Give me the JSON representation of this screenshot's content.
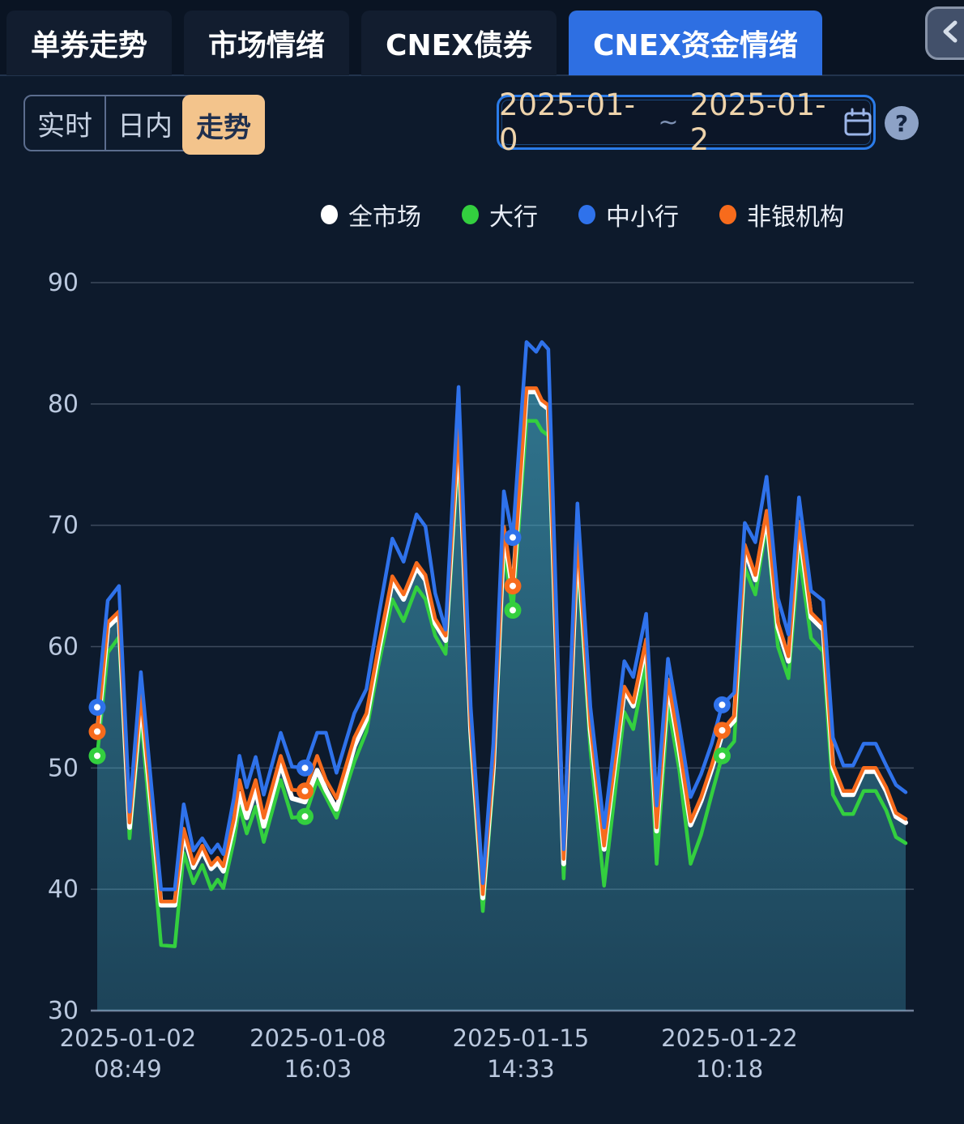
{
  "tabs": {
    "items": [
      {
        "label": "单券走势",
        "active": false
      },
      {
        "label": "市场情绪",
        "active": false
      },
      {
        "label": "CNEX债券",
        "active": false
      },
      {
        "label": "CNEX资金情绪",
        "active": true
      }
    ]
  },
  "controls": {
    "view_modes": [
      {
        "label": "实时",
        "active": false
      },
      {
        "label": "日内",
        "active": false
      },
      {
        "label": "走势",
        "active": true
      }
    ],
    "date_range": {
      "start": "2025-01-0",
      "separator": "~",
      "end": "2025-01-2"
    },
    "help_label": "?"
  },
  "legend": [
    {
      "label": "全市场",
      "color": "#ffffff"
    },
    {
      "label": "大行",
      "color": "#33cf3f"
    },
    {
      "label": "中小行",
      "color": "#2f72eb"
    },
    {
      "label": "非银机构",
      "color": "#f76b1c"
    }
  ],
  "chart_data": {
    "type": "line",
    "ylim": [
      30,
      90
    ],
    "yticks": [
      90,
      80,
      70,
      60,
      50,
      40,
      30
    ],
    "grid": true,
    "legend_position": "top",
    "xticks": [
      {
        "pct": 3.8,
        "date": "2025-01-02",
        "time": "08:49"
      },
      {
        "pct": 27.3,
        "date": "2025-01-08",
        "time": "16:03"
      },
      {
        "pct": 52.4,
        "date": "2025-01-15",
        "time": "14:33"
      },
      {
        "pct": 78.2,
        "date": "2025-01-22",
        "time": "10:18"
      }
    ],
    "x_pct": [
      0,
      1.3,
      2.7,
      4.0,
      5.4,
      6.7,
      7.9,
      9.6,
      10.7,
      11.9,
      13.0,
      14.1,
      14.9,
      15.6,
      16.9,
      17.6,
      18.5,
      19.6,
      20.6,
      22.7,
      24.1,
      25.7,
      27.2,
      28.3,
      29.6,
      31.8,
      33.3,
      34.8,
      36.5,
      37.9,
      39.5,
      40.6,
      41.8,
      43.1,
      44.7,
      46.2,
      47.7,
      49.0,
      50.3,
      51.4,
      53.1,
      54.3,
      55.0,
      55.8,
      57.7,
      59.4,
      61.0,
      62.7,
      65.2,
      66.3,
      67.9,
      69.2,
      70.6,
      72.0,
      73.4,
      74.7,
      76.0,
      77.3,
      78.8,
      80.1,
      81.4,
      82.8,
      84.2,
      85.5,
      86.8,
      88.3,
      89.8,
      91.0,
      92.3,
      93.5,
      94.8,
      96.3,
      97.6,
      98.8,
      100
    ],
    "series": [
      {
        "id": "all-market",
        "name": "全市场",
        "color": "#ffffff",
        "z": 2,
        "fill": true,
        "markers": [],
        "values": [
          52.7,
          61.6,
          62.5,
          45.1,
          55.6,
          46.8,
          38.7,
          38.7,
          44.6,
          41.8,
          43.2,
          41.7,
          42.2,
          41.5,
          45.3,
          47.9,
          45.9,
          48.2,
          45.2,
          50.3,
          47.5,
          47.2,
          49.8,
          48.2,
          46.6,
          51.8,
          54.0,
          59.6,
          65.4,
          63.9,
          66.5,
          65.5,
          61.9,
          60.5,
          77.8,
          53.1,
          39.3,
          50.1,
          69.4,
          64.6,
          81.0,
          81.0,
          80.0,
          79.6,
          42.1,
          68.9,
          53.1,
          43.3,
          56.4,
          55.1,
          60.2,
          44.8,
          56.9,
          51.4,
          45.3,
          47.3,
          49.9,
          52.8,
          53.9,
          68.0,
          65.5,
          70.8,
          61.6,
          58.8,
          69.9,
          62.4,
          61.4,
          50.0,
          47.8,
          47.8,
          49.7,
          49.7,
          48.1,
          46.0,
          45.5
        ]
      },
      {
        "id": "major-banks",
        "name": "大行",
        "color": "#33cf3f",
        "z": 1,
        "fill": false,
        "markers": [
          0,
          21,
          39,
          57
        ],
        "values": [
          51.0,
          59.5,
          60.8,
          44.2,
          54.3,
          44.5,
          35.4,
          35.3,
          43.0,
          40.5,
          42.0,
          40.0,
          40.8,
          40.1,
          44.0,
          46.8,
          44.6,
          46.8,
          43.9,
          49.0,
          45.9,
          46.0,
          49.0,
          47.6,
          45.9,
          50.5,
          53.0,
          58.5,
          63.9,
          62.1,
          64.9,
          63.9,
          60.9,
          59.4,
          76.2,
          52.0,
          38.2,
          49.0,
          67.8,
          63.0,
          78.6,
          78.6,
          77.8,
          77.4,
          40.9,
          67.5,
          51.5,
          40.3,
          54.6,
          53.2,
          58.6,
          42.1,
          55.2,
          49.8,
          42.1,
          44.5,
          47.8,
          51.0,
          52.2,
          66.5,
          64.3,
          70.1,
          60.0,
          57.4,
          67.7,
          60.7,
          59.6,
          47.8,
          46.2,
          46.2,
          48.1,
          48.1,
          46.5,
          44.3,
          43.8
        ]
      },
      {
        "id": "mid-small-banks",
        "name": "中小行",
        "color": "#2f72eb",
        "z": 4,
        "fill": false,
        "markers": [
          0,
          21,
          39,
          57
        ],
        "values": [
          55.0,
          63.8,
          65.0,
          46.4,
          57.9,
          48.5,
          40.0,
          40.0,
          47.0,
          43.2,
          44.2,
          43.0,
          43.7,
          42.9,
          47.5,
          51.0,
          48.4,
          50.9,
          47.8,
          52.9,
          50.1,
          50.0,
          52.9,
          52.9,
          49.6,
          54.5,
          56.5,
          62.5,
          68.9,
          67.0,
          70.9,
          69.9,
          64.4,
          61.4,
          81.4,
          55.0,
          40.5,
          52.0,
          72.8,
          69.0,
          85.1,
          84.3,
          85.1,
          84.5,
          43.3,
          71.8,
          55.0,
          45.1,
          58.8,
          57.5,
          62.7,
          46.9,
          59.0,
          53.5,
          47.6,
          49.5,
          52.0,
          55.2,
          56.2,
          70.2,
          68.6,
          74.0,
          64.0,
          61.0,
          72.3,
          64.6,
          63.8,
          52.5,
          50.2,
          50.2,
          52.0,
          52.0,
          50.2,
          48.6,
          48.0
        ]
      },
      {
        "id": "non-bank",
        "name": "非银机构",
        "color": "#f76b1c",
        "z": 3,
        "fill": false,
        "markers": [
          0,
          21,
          39,
          57
        ],
        "values": [
          53.0,
          62.0,
          62.9,
          45.5,
          56.0,
          47.2,
          39.0,
          39.0,
          45.0,
          42.1,
          43.6,
          42.0,
          42.6,
          41.9,
          45.8,
          49.0,
          46.6,
          49.0,
          45.9,
          51.0,
          48.2,
          48.1,
          51.0,
          49.0,
          47.5,
          52.5,
          54.5,
          60.0,
          65.8,
          64.3,
          66.9,
          65.9,
          62.3,
          60.9,
          78.2,
          53.5,
          39.6,
          50.5,
          69.9,
          65.0,
          81.3,
          81.3,
          80.3,
          79.9,
          42.5,
          69.3,
          53.5,
          43.6,
          56.7,
          55.4,
          60.6,
          45.1,
          57.3,
          51.8,
          45.6,
          47.6,
          50.2,
          53.1,
          54.3,
          68.4,
          65.9,
          71.2,
          62.0,
          59.2,
          70.3,
          62.8,
          61.8,
          50.3,
          48.1,
          48.1,
          50.0,
          50.0,
          48.4,
          46.3,
          45.8
        ]
      }
    ]
  },
  "colors": {
    "background": "#0d1a2c",
    "tab_active": "#2e6fe2",
    "toggle_active": "#f3c48c",
    "date_border": "#2b7ce9",
    "area_fill": "#46afcd",
    "grid_line": "#bac8de",
    "axis_label": "#bac8de"
  }
}
